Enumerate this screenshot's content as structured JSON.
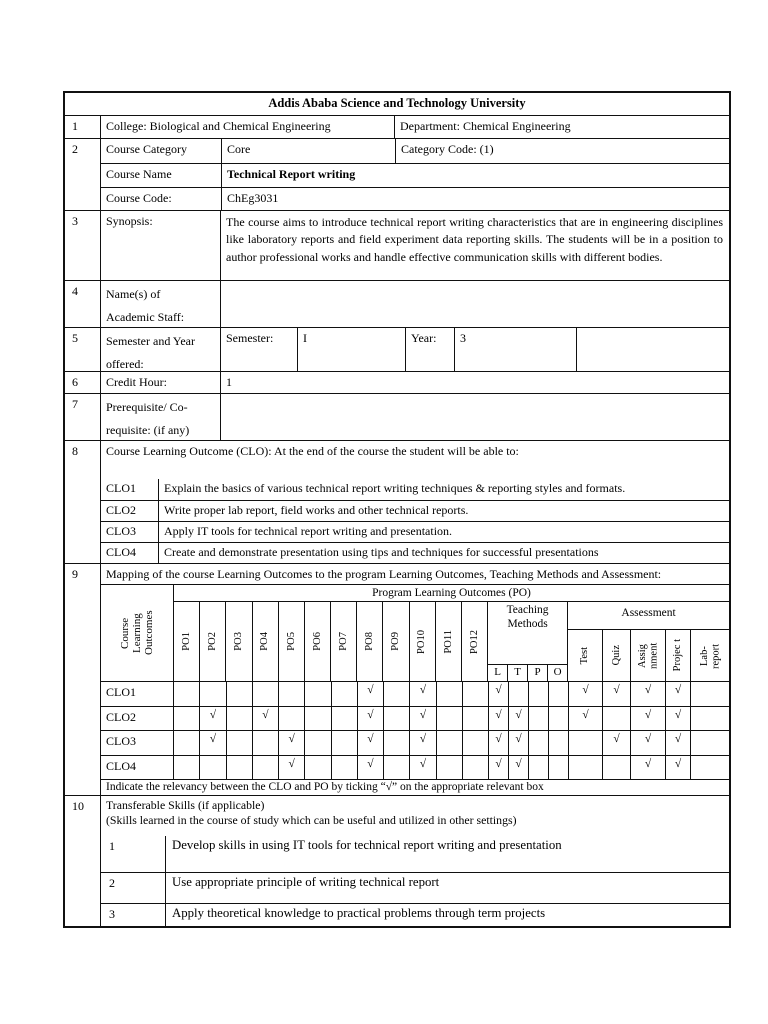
{
  "title": "Addis Ababa Science and Technology University",
  "r1": {
    "no": "1",
    "college": "College: Biological and Chemical Engineering",
    "department": "Department: Chemical Engineering"
  },
  "r2": {
    "no": "2",
    "category_label": "Course Category",
    "category_value": "Core",
    "category_code": "Category Code: (1)",
    "course_name_label": "Course Name",
    "course_name_value": "Technical Report writing",
    "course_code_label": "Course Code:",
    "course_code_value": "ChEg3031"
  },
  "r3": {
    "no": "3",
    "label": "Synopsis:",
    "text": "The course aims to introduce technical report writing characteristics that are in engineering disciplines like laboratory reports and field experiment data reporting skills. The students will be in a position to author professional works and handle effective communication skills with different bodies."
  },
  "r4": {
    "no": "4",
    "label_line1": "Name(s) of",
    "label_line2": "Academic Staff:",
    "value": ""
  },
  "r5": {
    "no": "5",
    "label_line1": "Semester and Year",
    "label_line2": "offered:",
    "semester_label": "Semester:",
    "semester_value": "I",
    "year_label": "Year:",
    "year_value": "3",
    "extra": ""
  },
  "r6": {
    "no": "6",
    "label": "Credit Hour:",
    "value": "1"
  },
  "r7": {
    "no": "7",
    "label_line1": "Prerequisite/ Co-",
    "label_line2": "requisite: (if any)",
    "value": ""
  },
  "r8": {
    "no": "8",
    "header": "Course Learning Outcome (CLO): At the end of the course the student will be able to:",
    "clos": [
      {
        "code": "CLO1",
        "text": "Explain the basics of various technical report writing techniques & reporting styles and formats."
      },
      {
        "code": "CLO2",
        "text": "Write proper lab report, field works and other technical reports."
      },
      {
        "code": "CLO3",
        "text": "Apply IT tools for technical report writing and presentation."
      },
      {
        "code": "CLO4",
        "text": "Create and demonstrate presentation using tips and techniques for successful presentations"
      }
    ]
  },
  "r9": {
    "no": "9",
    "header": "Mapping of the course Learning Outcomes to the program Learning Outcomes, Teaching Methods and Assessment:",
    "po_group_header": "Program Learning Outcomes (PO)",
    "clo_col_header": "Course Learning Outcomes",
    "teaching_header": "Teaching Methods",
    "assessment_header": "Assessment",
    "po_labels": [
      "PO1",
      "PO2",
      "PO3",
      "PO4",
      "PO5",
      "PO6",
      "PO7",
      "PO8",
      "PO9",
      "PO10",
      "PO11",
      "PO12"
    ],
    "teaching_labels": [
      "L",
      "T",
      "P",
      "O"
    ],
    "assessment_labels": [
      "Test",
      "Quiz",
      "Assig nment",
      "Projec t",
      "Lab- report"
    ],
    "matrix": [
      {
        "label": "CLO1",
        "po": [
          "",
          "",
          "",
          "",
          "",
          "",
          "",
          "√",
          "",
          "√",
          "",
          ""
        ],
        "teaching": [
          "√",
          "",
          "",
          ""
        ],
        "assessment": [
          "√",
          "√",
          "√",
          "√",
          ""
        ]
      },
      {
        "label": "CLO2",
        "po": [
          "",
          "√",
          "",
          "√",
          "",
          "",
          "",
          "√",
          "",
          "√",
          "",
          ""
        ],
        "teaching": [
          "√",
          "√",
          "",
          ""
        ],
        "assessment": [
          "√",
          "",
          "√",
          "√",
          ""
        ]
      },
      {
        "label": "CLO3",
        "po": [
          "",
          "√",
          "",
          "",
          "√",
          "",
          "",
          "√",
          "",
          "√",
          "",
          ""
        ],
        "teaching": [
          "√",
          "√",
          "",
          ""
        ],
        "assessment": [
          "",
          "√",
          "√",
          "√",
          ""
        ]
      },
      {
        "label": "CLO4",
        "po": [
          "",
          "",
          "",
          "",
          "√",
          "",
          "",
          "√",
          "",
          "√",
          "",
          ""
        ],
        "teaching": [
          "√",
          "√",
          "",
          ""
        ],
        "assessment": [
          "",
          "",
          "√",
          "√",
          ""
        ]
      }
    ],
    "note": "Indicate the relevancy between the CLO and PO by ticking “√” on the appropriate relevant box"
  },
  "r10": {
    "no": "10",
    "header_line1": "Transferable Skills (if applicable)",
    "header_line2": "(Skills learned in the course of study which can be useful and utilized in other settings)",
    "skills": [
      {
        "no": "1",
        "text": "Develop skills in using IT tools for technical report writing and presentation"
      },
      {
        "no": "2",
        "text": "Use appropriate principle of writing technical report"
      },
      {
        "no": "3",
        "text": "Apply theoretical knowledge to practical problems through term projects"
      }
    ]
  }
}
